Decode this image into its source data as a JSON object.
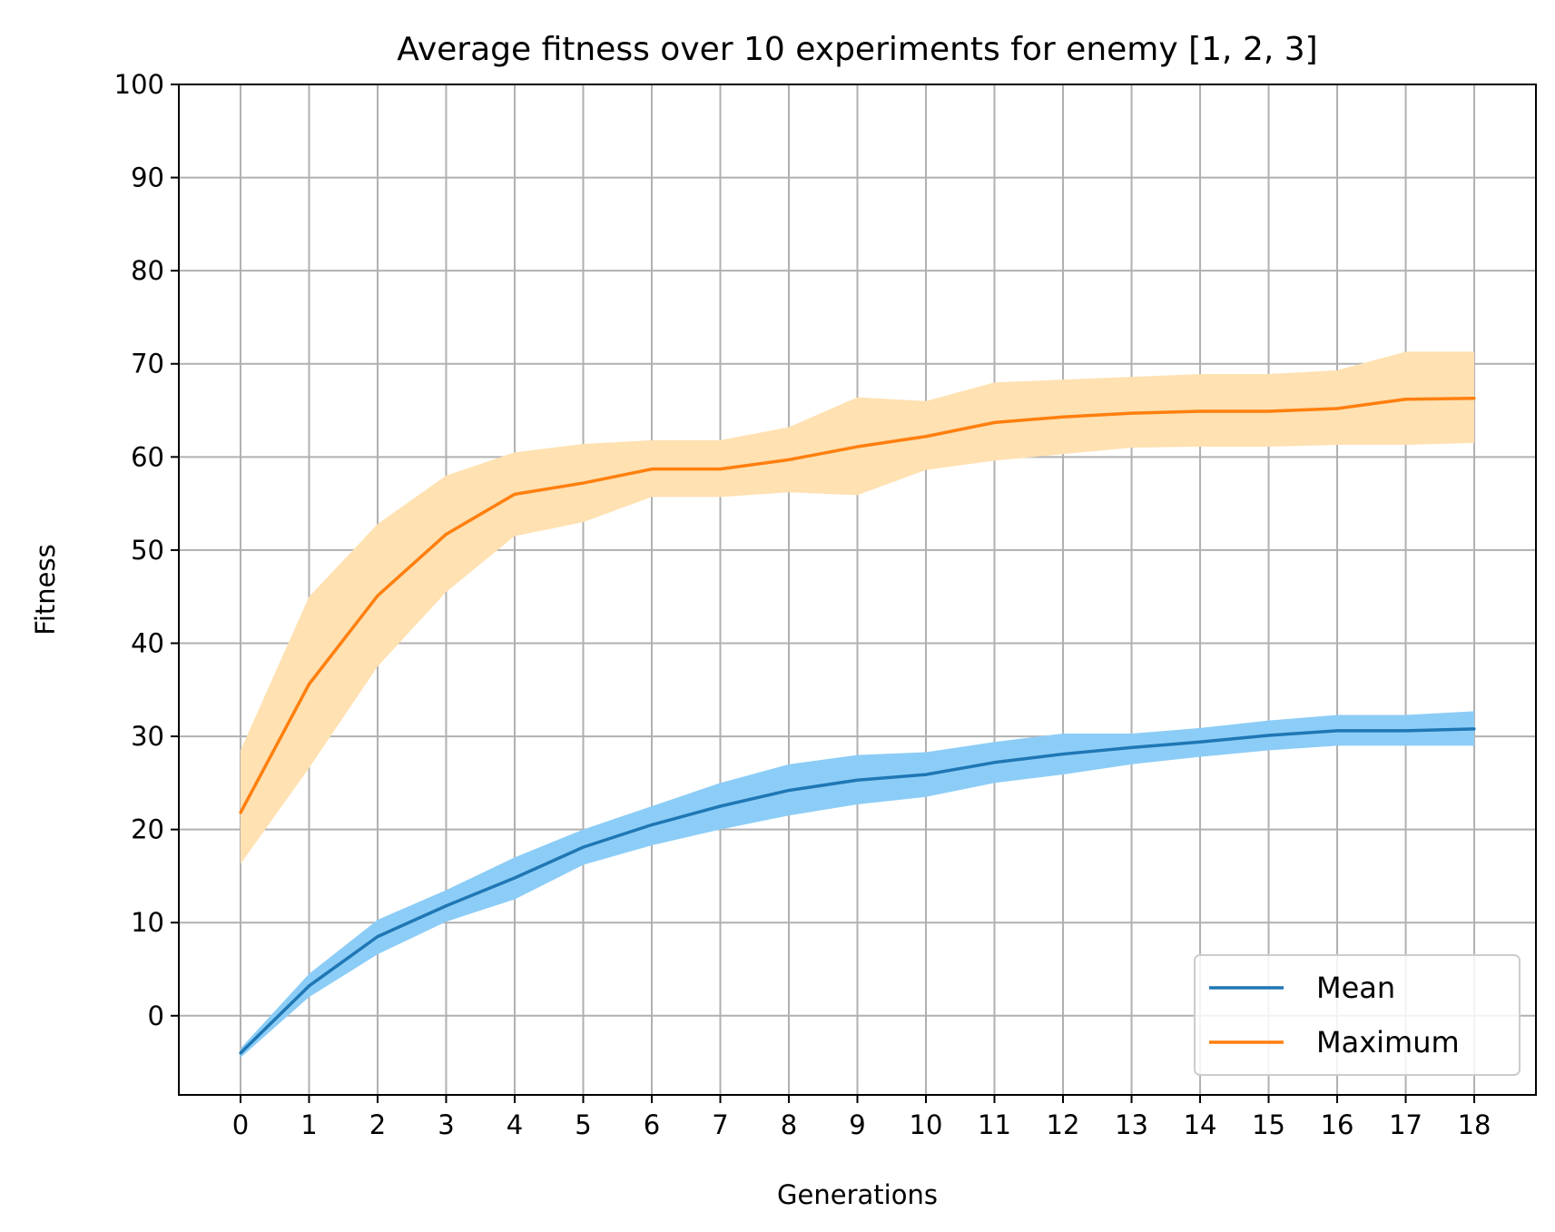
{
  "chart_data": {
    "type": "line",
    "title": "Average fitness over 10 experiments for enemy [1, 2, 3]",
    "xlabel": "Generations",
    "ylabel": "Fitness",
    "x": [
      0,
      1,
      2,
      3,
      4,
      5,
      6,
      7,
      8,
      9,
      10,
      11,
      12,
      13,
      14,
      15,
      16,
      17,
      18
    ],
    "xlim": [
      -0.9,
      18.9
    ],
    "ylim": [
      -8.5,
      100
    ],
    "xticks": [
      0,
      1,
      2,
      3,
      4,
      5,
      6,
      7,
      8,
      9,
      10,
      11,
      12,
      13,
      14,
      15,
      16,
      17,
      18
    ],
    "yticks": [
      0,
      10,
      20,
      30,
      40,
      50,
      60,
      70,
      80,
      90,
      100
    ],
    "grid": true,
    "legend_position": "bottom-right",
    "series": [
      {
        "name": "Mean",
        "color": "#1f77b4",
        "band_color": "#8ccdf7",
        "values": [
          -4.0,
          3.2,
          8.5,
          11.8,
          14.8,
          18.1,
          20.5,
          22.5,
          24.2,
          25.3,
          25.9,
          27.2,
          28.1,
          28.8,
          29.4,
          30.1,
          30.6,
          30.6,
          30.8
        ],
        "lower": [
          -4.5,
          2.0,
          6.6,
          10.1,
          12.5,
          16.2,
          18.3,
          20.0,
          21.5,
          22.7,
          23.5,
          25.0,
          25.9,
          27.0,
          27.8,
          28.5,
          29.0,
          29.0,
          29.0
        ],
        "upper": [
          -3.5,
          4.5,
          10.3,
          13.5,
          17.0,
          20.0,
          22.5,
          25.0,
          27.0,
          28.0,
          28.3,
          29.4,
          30.3,
          30.3,
          30.9,
          31.7,
          32.3,
          32.3,
          32.7
        ]
      },
      {
        "name": "Maximum",
        "color": "#ff7f0e",
        "band_color": "#ffe1b2",
        "values": [
          21.8,
          35.6,
          45.1,
          51.7,
          56.0,
          57.2,
          58.7,
          58.7,
          59.7,
          61.1,
          62.2,
          63.7,
          64.3,
          64.7,
          64.9,
          64.9,
          65.2,
          66.2,
          66.3
        ],
        "lower": [
          16.3,
          26.6,
          37.5,
          45.5,
          51.5,
          53.0,
          55.7,
          55.7,
          56.2,
          55.9,
          58.6,
          59.6,
          60.3,
          61.0,
          61.1,
          61.1,
          61.3,
          61.3,
          61.5
        ],
        "upper": [
          28.5,
          45.0,
          52.8,
          58.0,
          60.5,
          61.4,
          61.8,
          61.8,
          63.2,
          66.4,
          66.0,
          68.0,
          68.3,
          68.6,
          68.9,
          68.9,
          69.3,
          71.3,
          71.3
        ]
      }
    ]
  }
}
